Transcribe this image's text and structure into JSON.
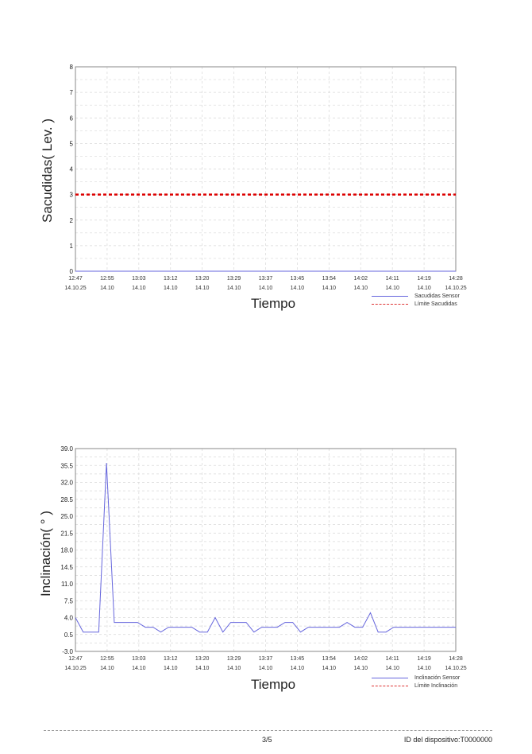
{
  "page": {
    "page_number": "3/5",
    "device_id": "ID del dispositivo:T0000000"
  },
  "chart_data": [
    {
      "type": "line",
      "title": "",
      "xlabel": "Tiempo",
      "ylabel": "Sacudidas( Lev. )",
      "ylim": [
        0,
        8
      ],
      "yticks": [
        "0",
        "1",
        "2",
        "3",
        "4",
        "5",
        "6",
        "7",
        "8"
      ],
      "xtick_times": [
        "12:47",
        "12:55",
        "13:03",
        "13:12",
        "13:20",
        "13:29",
        "13:37",
        "13:45",
        "13:54",
        "14:02",
        "14:11",
        "14:19",
        "14:28"
      ],
      "xtick_dates": [
        "14.10.25",
        "14.10",
        "14.10",
        "14.10",
        "14.10",
        "14.10",
        "14.10",
        "14.10",
        "14.10",
        "14.10",
        "14.10",
        "14.10",
        "14.10.25"
      ],
      "grid": true,
      "legend_position": "bottom-right",
      "series": [
        {
          "name": "Sacudidas Sensor",
          "color": "#6666dd",
          "style": "solid",
          "values": [
            0,
            0,
            0,
            0,
            0,
            0,
            0,
            0,
            0,
            0,
            0,
            0,
            0,
            0,
            0,
            0,
            0,
            0,
            0,
            0,
            0,
            0,
            0,
            0,
            0,
            0,
            0,
            0,
            0,
            0,
            0,
            0,
            0,
            0,
            0,
            0,
            0,
            0,
            0,
            0,
            0,
            0,
            0,
            0,
            0,
            0,
            0,
            0,
            0,
            0
          ]
        },
        {
          "name": "Límite Sacudidas",
          "color": "#dd0000",
          "style": "dashed",
          "value": 3
        }
      ]
    },
    {
      "type": "line",
      "title": "",
      "xlabel": "Tiempo",
      "ylabel": "Inclinación( ° )",
      "ylim": [
        -3.0,
        39.0
      ],
      "yticks": [
        "-3.0",
        "0.5",
        "4.0",
        "7.5",
        "11.0",
        "14.5",
        "18.0",
        "21.5",
        "25.0",
        "28.5",
        "32.0",
        "35.5",
        "39.0"
      ],
      "xtick_times": [
        "12:47",
        "12:55",
        "13:03",
        "13:12",
        "13:20",
        "13:29",
        "13:37",
        "13:45",
        "13:54",
        "14:02",
        "14:11",
        "14:19",
        "14:28"
      ],
      "xtick_dates": [
        "14.10.25",
        "14.10",
        "14.10",
        "14.10",
        "14.10",
        "14.10",
        "14.10",
        "14.10",
        "14.10",
        "14.10",
        "14.10",
        "14.10",
        "14.10.25"
      ],
      "grid": true,
      "legend_position": "bottom-right",
      "series": [
        {
          "name": "Inclinación Sensor",
          "color": "#6666dd",
          "style": "solid",
          "values": [
            4.0,
            1.0,
            1.0,
            1.0,
            36.0,
            3.0,
            3.0,
            3.0,
            3.0,
            2.0,
            2.0,
            1.0,
            2.0,
            2.0,
            2.0,
            2.0,
            1.0,
            1.0,
            4.0,
            1.0,
            3.0,
            3.0,
            3.0,
            1.0,
            2.0,
            2.0,
            2.0,
            3.0,
            3.0,
            1.0,
            2.0,
            2.0,
            2.0,
            2.0,
            2.0,
            3.0,
            2.0,
            2.0,
            5.0,
            1.0,
            1.0,
            2.0,
            2.0,
            2.0,
            2.0,
            2.0,
            2.0,
            2.0,
            2.0,
            2.0
          ]
        },
        {
          "name": "Límite Inclinación",
          "color": "#dd0000",
          "style": "dashed",
          "value": null
        }
      ]
    }
  ]
}
